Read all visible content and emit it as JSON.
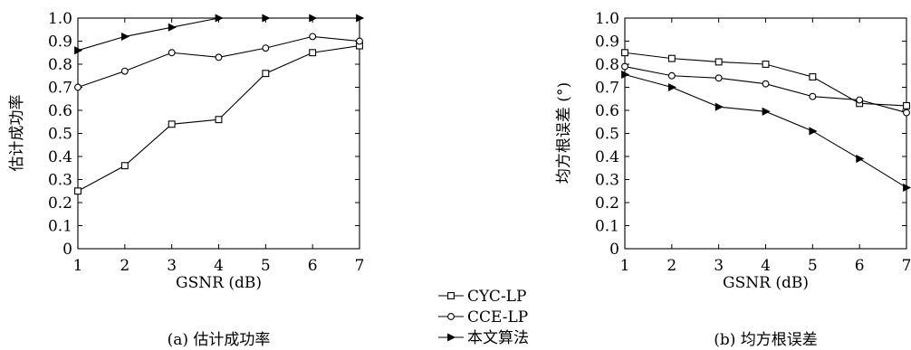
{
  "chart_data": [
    {
      "type": "line",
      "caption": "(a) 估计成功率",
      "xlabel": "GSNR (dB)",
      "ylabel": "估计成功率",
      "x": [
        1,
        2,
        3,
        4,
        5,
        6,
        7
      ],
      "xlim": [
        1,
        7
      ],
      "ylim": [
        0,
        1.0
      ],
      "xticks": [
        "1",
        "2",
        "3",
        "4",
        "5",
        "6",
        "7"
      ],
      "yticks": [
        "0",
        "0.1",
        "0.2",
        "0.3",
        "0.4",
        "0.5",
        "0.6",
        "0.7",
        "0.8",
        "0.9",
        "1.0"
      ],
      "grid": false,
      "series": [
        {
          "name": "CYC-LP",
          "marker": "square",
          "values": [
            0.25,
            0.36,
            0.54,
            0.56,
            0.76,
            0.85,
            0.88
          ]
        },
        {
          "name": "CCE-LP",
          "marker": "circle",
          "values": [
            0.7,
            0.77,
            0.85,
            0.83,
            0.87,
            0.92,
            0.9
          ]
        },
        {
          "name": "本文算法",
          "marker": "triangle-right",
          "values": [
            0.86,
            0.92,
            0.96,
            1.0,
            1.0,
            1.0,
            1.0
          ]
        }
      ]
    },
    {
      "type": "line",
      "caption": "(b) 均方根误差",
      "xlabel": "GSNR (dB)",
      "ylabel": "均方根误差 (°)",
      "x": [
        1,
        2,
        3,
        4,
        5,
        6,
        7
      ],
      "xlim": [
        1,
        7
      ],
      "ylim": [
        0,
        1.0
      ],
      "xticks": [
        "1",
        "2",
        "3",
        "4",
        "5",
        "6",
        "7"
      ],
      "yticks": [
        "0",
        "0.1",
        "0.2",
        "0.3",
        "0.4",
        "0.5",
        "0.6",
        "0.7",
        "0.8",
        "0.9",
        "1.0"
      ],
      "grid": false,
      "series": [
        {
          "name": "CYC-LP",
          "marker": "square",
          "values": [
            0.85,
            0.825,
            0.81,
            0.8,
            0.745,
            0.63,
            0.62
          ]
        },
        {
          "name": "CCE-LP",
          "marker": "circle",
          "values": [
            0.79,
            0.75,
            0.74,
            0.715,
            0.66,
            0.645,
            0.59
          ]
        },
        {
          "name": "本文算法",
          "marker": "triangle-right",
          "values": [
            0.755,
            0.7,
            0.615,
            0.595,
            0.51,
            0.39,
            0.265
          ]
        }
      ]
    }
  ],
  "legend": {
    "placement": "bottom-center",
    "items": [
      {
        "label": "CYC-LP",
        "marker": "square"
      },
      {
        "label": "CCE-LP",
        "marker": "circle"
      },
      {
        "label": "本文算法",
        "marker": "triangle-right"
      }
    ]
  }
}
